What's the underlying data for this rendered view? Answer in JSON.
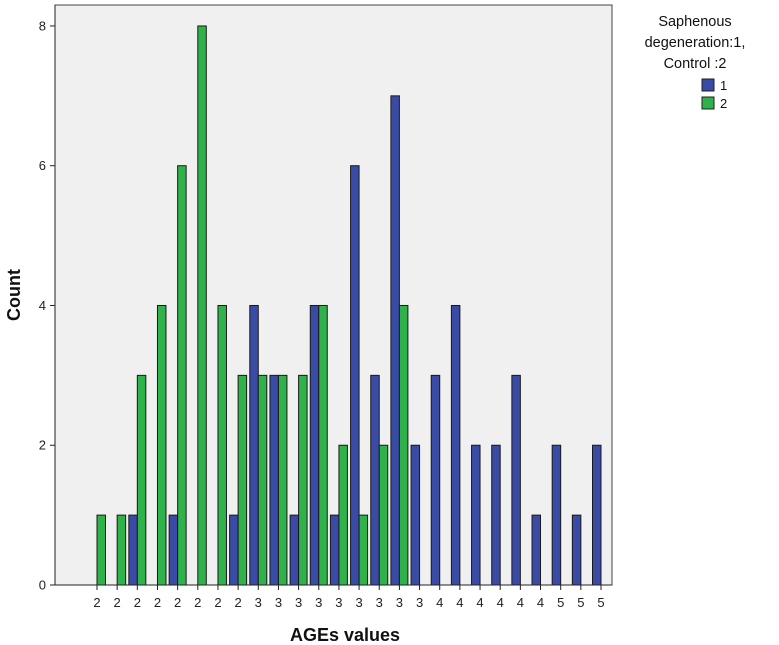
{
  "chart_data": {
    "type": "bar",
    "xlabel": "AGEs values",
    "ylabel": "Count",
    "categories": [
      "2",
      "2",
      "2",
      "2",
      "2",
      "2",
      "2",
      "2",
      "3",
      "3",
      "3",
      "3",
      "3",
      "3",
      "3",
      "3",
      "3",
      "4",
      "4",
      "4",
      "4",
      "4",
      "4",
      "5",
      "5",
      "5"
    ],
    "series": [
      {
        "name": "1",
        "color": "#3a4ba6",
        "values": [
          0,
          0,
          1,
          0,
          1,
          0,
          0,
          1,
          4,
          3,
          1,
          4,
          1,
          6,
          3,
          7,
          2,
          3,
          4,
          2,
          2,
          3,
          1,
          2,
          1,
          2
        ]
      },
      {
        "name": "2",
        "color": "#2fb24a",
        "values": [
          1,
          1,
          3,
          4,
          6,
          8,
          4,
          3,
          3,
          3,
          3,
          4,
          2,
          1,
          2,
          4,
          0,
          0,
          0,
          0,
          0,
          0,
          0,
          0,
          0,
          0
        ]
      }
    ],
    "y_ticks": [
      0,
      2,
      4,
      6,
      8
    ],
    "ylim": [
      0,
      8.3
    ],
    "grid": false,
    "legend": {
      "title_lines": [
        "Saphenous",
        "degeneration:1,",
        "Control :2"
      ],
      "placement": "top-right outside",
      "entries": [
        "1",
        "2"
      ]
    },
    "plot_background": "#f0f0f0"
  }
}
